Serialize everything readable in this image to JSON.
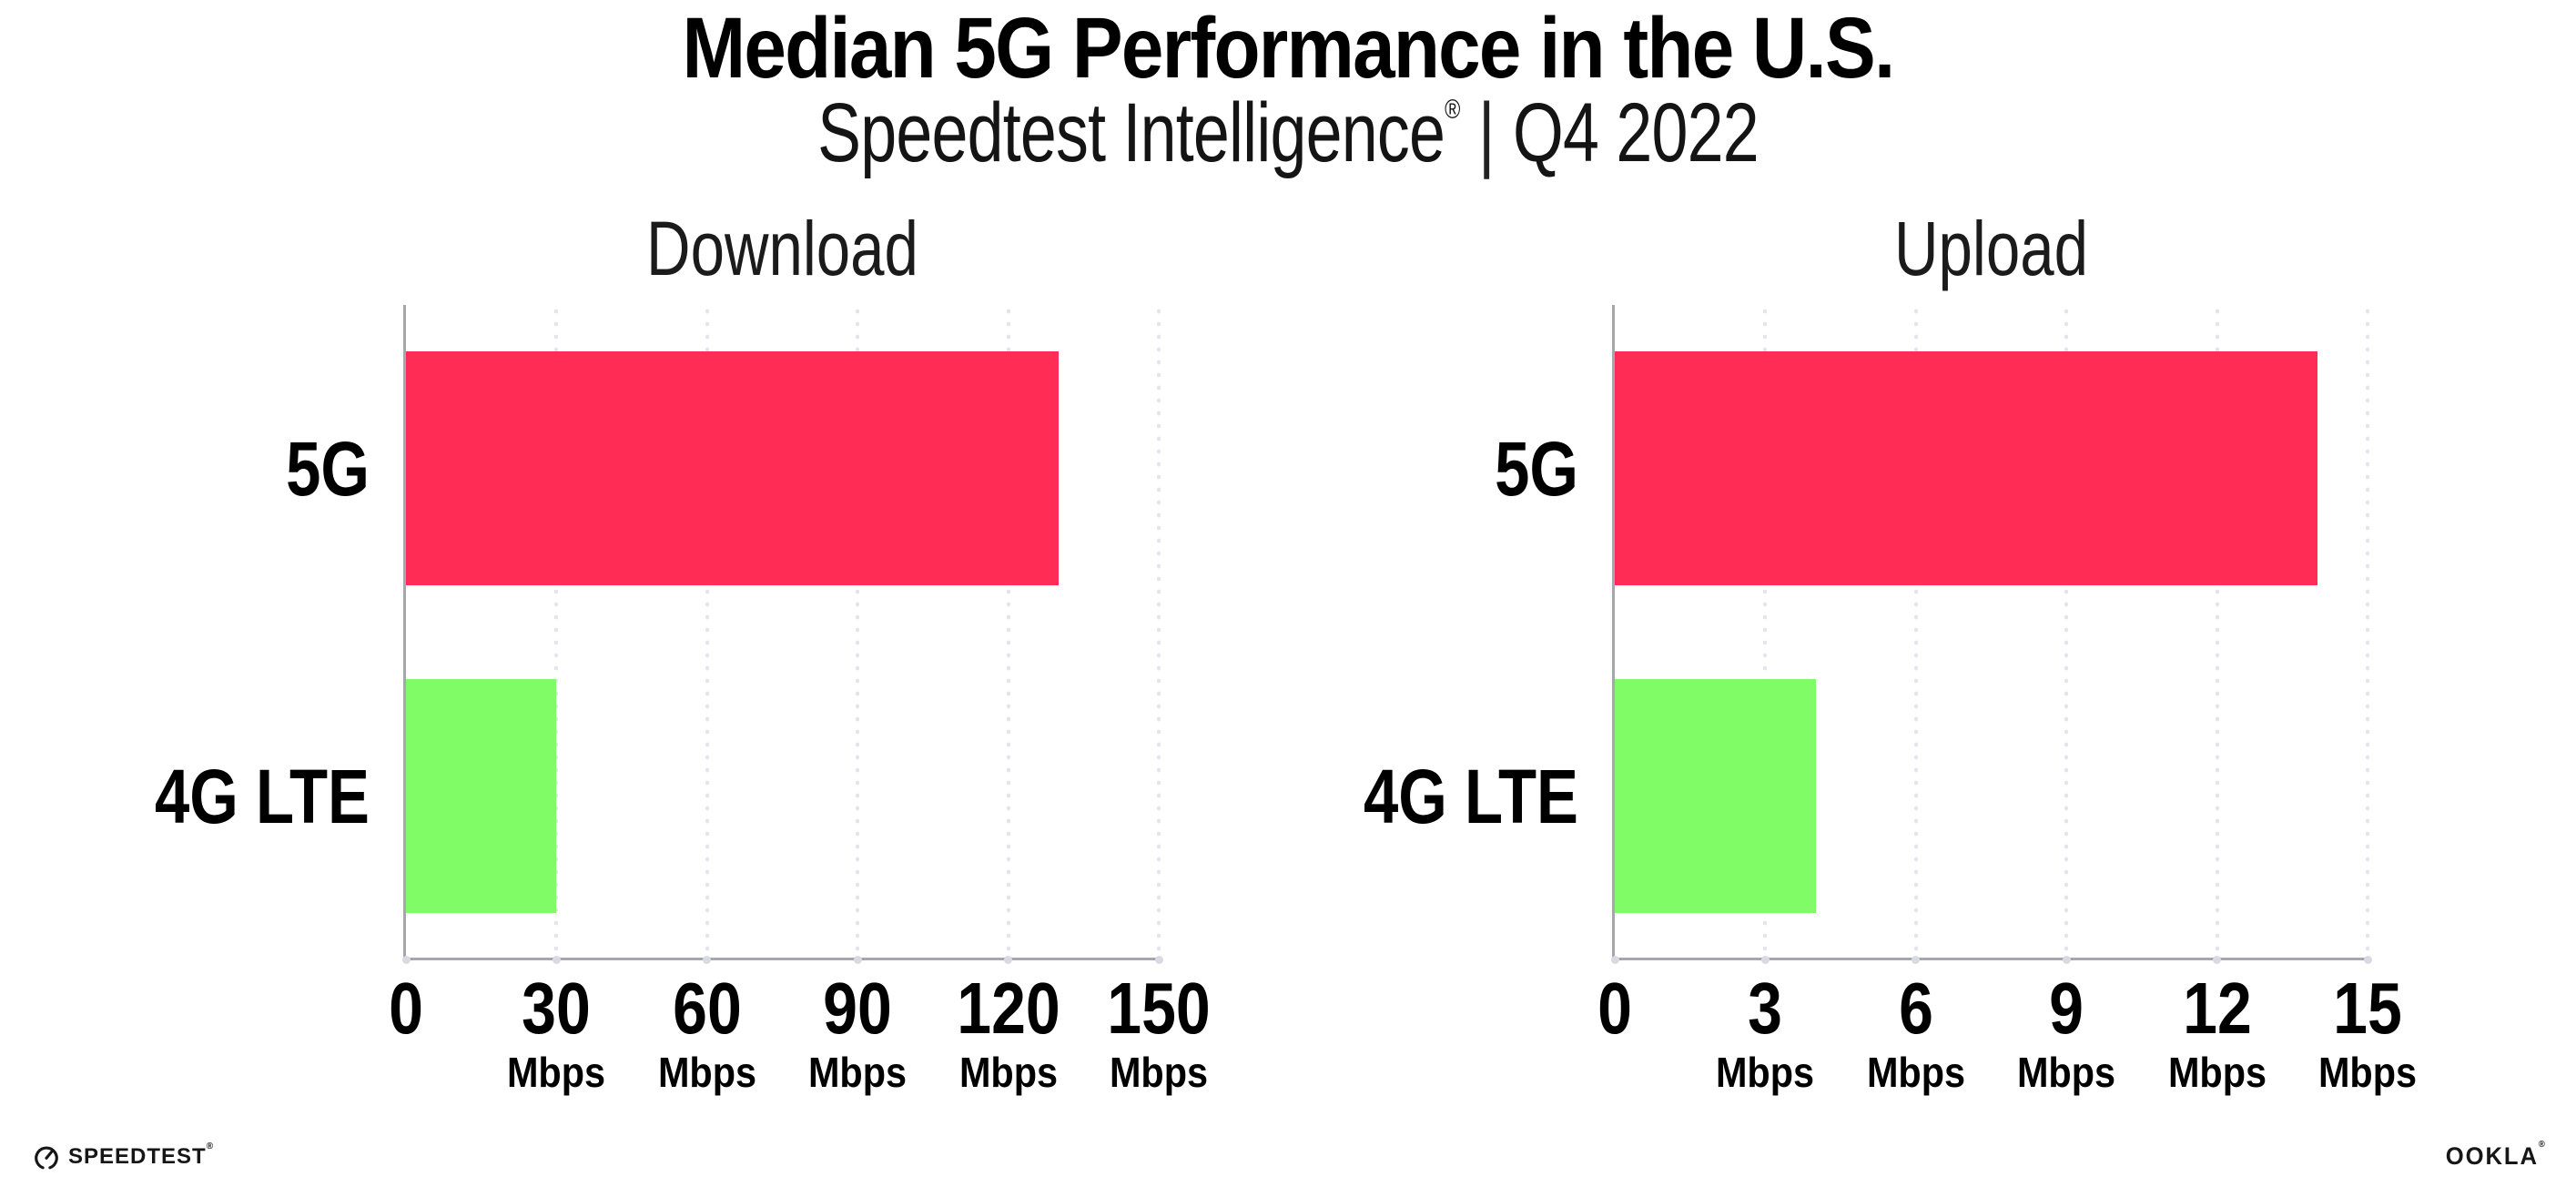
{
  "header": {
    "title": "Median 5G Performance in the U.S.",
    "subtitle_brand": "Speedtest Intelligence",
    "subtitle_mark": "®",
    "subtitle_divider": "|",
    "subtitle_period": "Q4 2022"
  },
  "chart_data": [
    {
      "type": "bar",
      "orientation": "horizontal",
      "title": "Download",
      "categories": [
        "5G",
        "4G LTE"
      ],
      "values": [
        130,
        30
      ],
      "unit": "Mbps",
      "xlim": [
        0,
        150
      ],
      "xticks": [
        0,
        30,
        60,
        90,
        120,
        150
      ],
      "bar_colors": [
        "#FF2D55",
        "#80FC66"
      ],
      "grid": "dotted-vertical-at-ticks",
      "legend": "none"
    },
    {
      "type": "bar",
      "orientation": "horizontal",
      "title": "Upload",
      "categories": [
        "5G",
        "4G LTE"
      ],
      "values": [
        14,
        4
      ],
      "unit": "Mbps",
      "xlim": [
        0,
        15
      ],
      "xticks": [
        0,
        3,
        6,
        9,
        12,
        15
      ],
      "bar_colors": [
        "#FF2D55",
        "#80FC66"
      ],
      "grid": "dotted-vertical-at-ticks",
      "legend": "none"
    }
  ],
  "footer": {
    "speedtest_label": "SPEEDTEST",
    "speedtest_mark": "®",
    "ookla_label": "OOKLA",
    "ookla_mark": "®"
  },
  "colors": {
    "bar_5g": "#FF2D55",
    "bar_4g_lte": "#80FC66",
    "axis": "#A6A6AC",
    "gridline_dot": "#E4E4EF",
    "text": "#111111",
    "background": "#FFFFFF"
  }
}
